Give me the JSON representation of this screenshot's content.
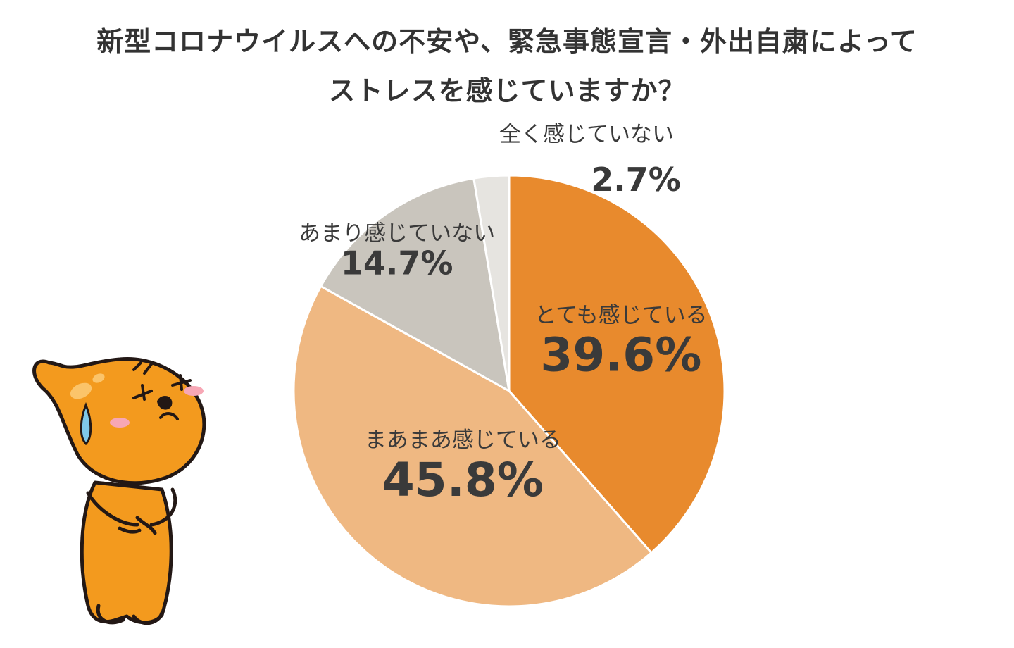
{
  "title": {
    "line1": "新型コロナウイルスへの不安や、緊急事態宣言・外出自粛によって",
    "line2": "ストレスを感じていますか？"
  },
  "chart_data": {
    "type": "pie",
    "title": "新型コロナウイルスへの不安や、緊急事態宣言・外出自粛によってストレスを感じていますか？",
    "unit": "%",
    "start": "12 o'clock",
    "direction": "clockwise",
    "slices": [
      {
        "label": "とても感じている",
        "value": 39.6,
        "display": "39.6%",
        "color": "#e88a2d"
      },
      {
        "label": "まあまあ感じている",
        "value": 45.8,
        "display": "45.8%",
        "color": "#efb882"
      },
      {
        "label": "あまり感じていない",
        "value": 14.7,
        "display": "14.7%",
        "color": "#c9c5bd"
      },
      {
        "label": "全く感じていない",
        "value": 2.7,
        "display": "2.7%",
        "color": "#e6e4e0"
      }
    ]
  },
  "mascot": {
    "icon": "crying-mascot-icon",
    "body_color": "#f39a1e",
    "outline_color": "#231815",
    "tear_color": "#7fc8e8",
    "cheek_color": "#f7a7b5"
  }
}
